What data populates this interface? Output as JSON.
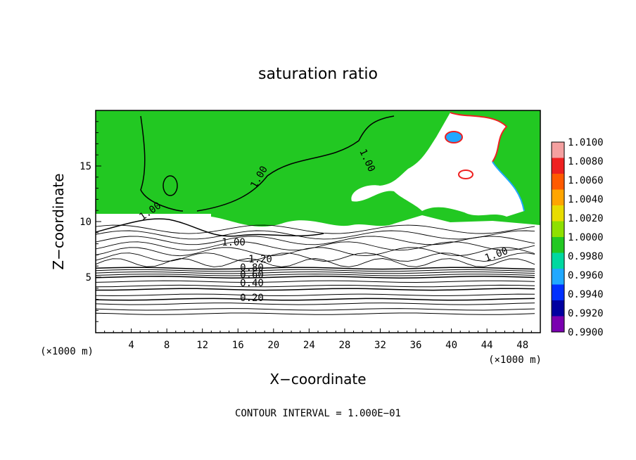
{
  "chart_data": {
    "type": "heatmap",
    "title": "saturation ratio",
    "xlabel": "X−coordinate",
    "ylabel": "Z−coordinate",
    "x_units_left": "(×1000 m)",
    "x_units_right": "(×1000 m)",
    "xlim": [
      0,
      50
    ],
    "ylim": [
      0,
      20
    ],
    "x_ticks": [
      4,
      8,
      12,
      16,
      20,
      24,
      28,
      32,
      36,
      40,
      44,
      48
    ],
    "y_ticks": [
      5,
      10,
      15
    ],
    "footer": "CONTOUR INTERVAL = 1.000E−01",
    "colorbar": {
      "levels": [
        "1.0100",
        "1.0080",
        "1.0060",
        "1.0040",
        "1.0020",
        "1.0000",
        "0.9980",
        "0.9960",
        "0.9940",
        "0.9920",
        "0.9900"
      ],
      "colors": [
        "#f4a0a0",
        "#ee2020",
        "#ff5a00",
        "#ffa500",
        "#e8dc00",
        "#8ee000",
        "#22c822",
        "#00d8a0",
        "#20a8ff",
        "#0030ff",
        "#0000a0",
        "#7a00b0"
      ]
    },
    "contour_labels": [
      "1.00",
      "1.00",
      "1.00",
      "1.00",
      "1.20",
      "0.80",
      "0.60",
      "0.40",
      "0.20",
      "1.00"
    ],
    "field_colors": {
      "near_saturation": "#22c822",
      "subsaturated": "#ffffff",
      "supersat_edge": "#ee2020",
      "dry_edge": "#20a8ff"
    }
  }
}
